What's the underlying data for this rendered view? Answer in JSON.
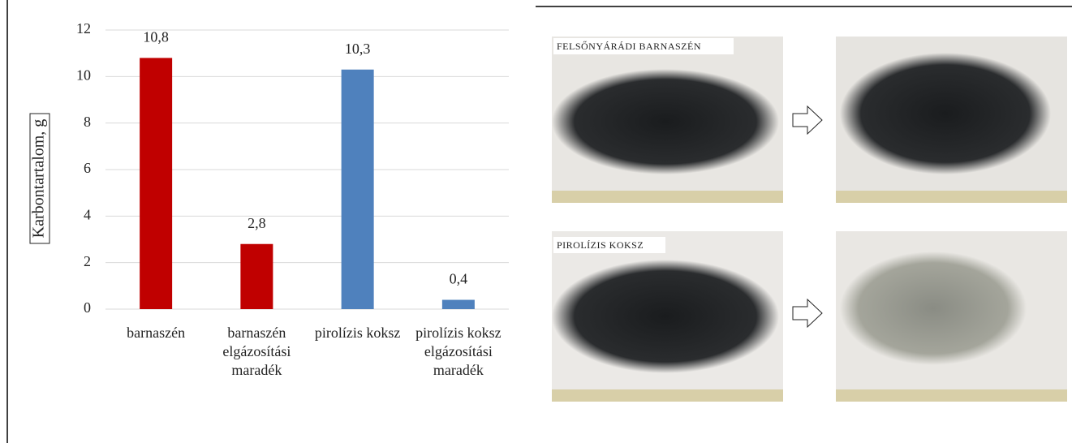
{
  "chart_data": {
    "type": "bar",
    "y_label": "Karbontartalom, g",
    "categories": [
      "barnaszén",
      "barnaszén elgázosítási maradék",
      "pirolízis koksz",
      "pirolízis koksz elgázosítási maradék"
    ],
    "values": [
      10.8,
      2.8,
      10.3,
      0.4
    ],
    "value_labels": [
      "10,8",
      "2,8",
      "10,3",
      "0,4"
    ],
    "colors": [
      "#c00000",
      "#c00000",
      "#4f81bd",
      "#4f81bd"
    ],
    "ylim": [
      0,
      12
    ],
    "yticks": [
      0,
      2,
      4,
      6,
      8,
      10,
      12
    ],
    "grid": true
  },
  "photos": {
    "labels": [
      "FELSŐNYÁRÁDI BARNASZÉN",
      "PIROLÍZIS KOKSZ"
    ]
  }
}
